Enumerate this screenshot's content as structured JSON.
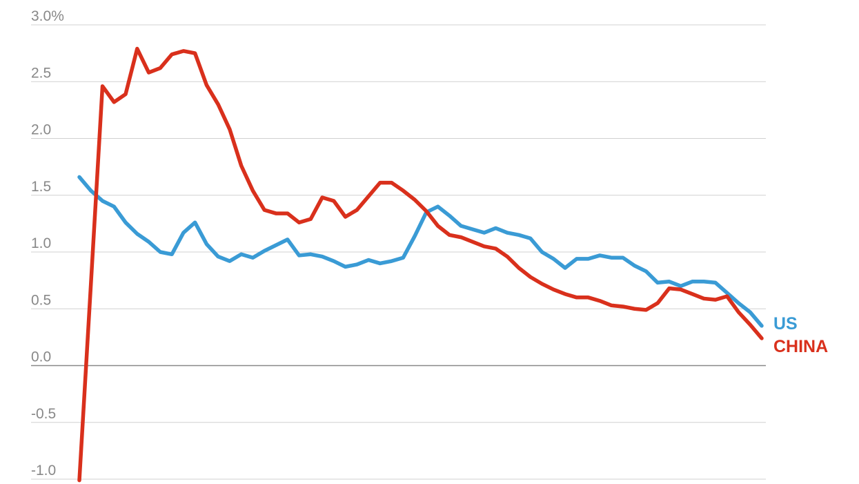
{
  "chart_data": {
    "type": "line",
    "title": "",
    "xlabel": "",
    "ylabel": "",
    "ylim": [
      -1.0,
      3.0
    ],
    "y_ticks": [
      {
        "value": 3.0,
        "label": "3.0%"
      },
      {
        "value": 2.5,
        "label": "2.5"
      },
      {
        "value": 2.0,
        "label": "2.0"
      },
      {
        "value": 1.5,
        "label": "1.5"
      },
      {
        "value": 1.0,
        "label": "1.0"
      },
      {
        "value": 0.5,
        "label": "0.5"
      },
      {
        "value": 0.0,
        "label": "0.0"
      },
      {
        "value": -0.5,
        "label": "-0.5"
      },
      {
        "value": -1.0,
        "label": "-1.0"
      }
    ],
    "grid": true,
    "legend": "inline labels at line ends (right)",
    "series": [
      {
        "name": "US",
        "color": "#3a9bd5",
        "values": [
          1.66,
          1.54,
          1.45,
          1.4,
          1.26,
          1.16,
          1.09,
          1.0,
          0.98,
          1.17,
          1.26,
          1.07,
          0.96,
          0.92,
          0.98,
          0.95,
          1.01,
          1.06,
          1.11,
          0.97,
          0.98,
          0.96,
          0.92,
          0.87,
          0.89,
          0.93,
          0.9,
          0.92,
          0.95,
          1.14,
          1.35,
          1.4,
          1.32,
          1.23,
          1.2,
          1.17,
          1.21,
          1.17,
          1.15,
          1.12,
          1.0,
          0.94,
          0.86,
          0.94,
          0.94,
          0.97,
          0.95,
          0.95,
          0.88,
          0.83,
          0.73,
          0.74,
          0.7,
          0.74,
          0.74,
          0.73,
          0.64,
          0.55,
          0.47,
          0.35
        ]
      },
      {
        "name": "CHINA",
        "color": "#d9301c",
        "values": [
          -1.01,
          0.72,
          2.46,
          2.32,
          2.39,
          2.79,
          2.58,
          2.62,
          2.74,
          2.77,
          2.75,
          2.47,
          2.3,
          2.08,
          1.76,
          1.54,
          1.37,
          1.34,
          1.34,
          1.26,
          1.29,
          1.48,
          1.45,
          1.31,
          1.37,
          1.49,
          1.61,
          1.61,
          1.54,
          1.46,
          1.36,
          1.23,
          1.15,
          1.13,
          1.09,
          1.05,
          1.03,
          0.96,
          0.86,
          0.78,
          0.72,
          0.67,
          0.63,
          0.6,
          0.6,
          0.57,
          0.53,
          0.52,
          0.5,
          0.49,
          0.55,
          0.68,
          0.67,
          0.63,
          0.59,
          0.58,
          0.61,
          0.47,
          0.36,
          0.24
        ]
      }
    ]
  }
}
